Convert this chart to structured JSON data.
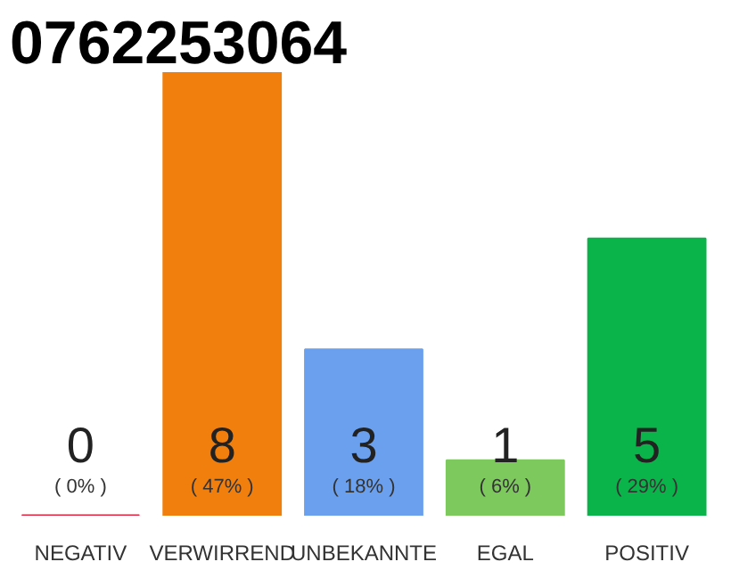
{
  "chart_data": {
    "type": "bar",
    "title": "0762253064",
    "categories": [
      "NEGATIV",
      "VERWIRREND",
      "UNBEKANNTE",
      "EGAL",
      "POSITIV"
    ],
    "values": [
      0,
      8,
      3,
      1,
      5
    ],
    "colors": [
      "#e8213f",
      "#f07f0d",
      "#6aa0ee",
      "#7dc95e",
      "#0bb44a"
    ],
    "value_labels": [
      "0",
      "8",
      "3",
      "1",
      "5"
    ],
    "annotations": [
      {
        "text": "( 0% )",
        "x": "NEGATIV",
        "y": 0
      },
      {
        "text": "( 47% )",
        "x": "VERWIRREND",
        "y": 0
      },
      {
        "text": "( 18% )",
        "x": "UNBEKANNTE",
        "y": 0
      },
      {
        "text": "( 6% )",
        "x": "EGAL",
        "y": 0
      },
      {
        "text": "( 29% )",
        "x": "POSITIV",
        "y": 0
      }
    ],
    "grid": false
  }
}
